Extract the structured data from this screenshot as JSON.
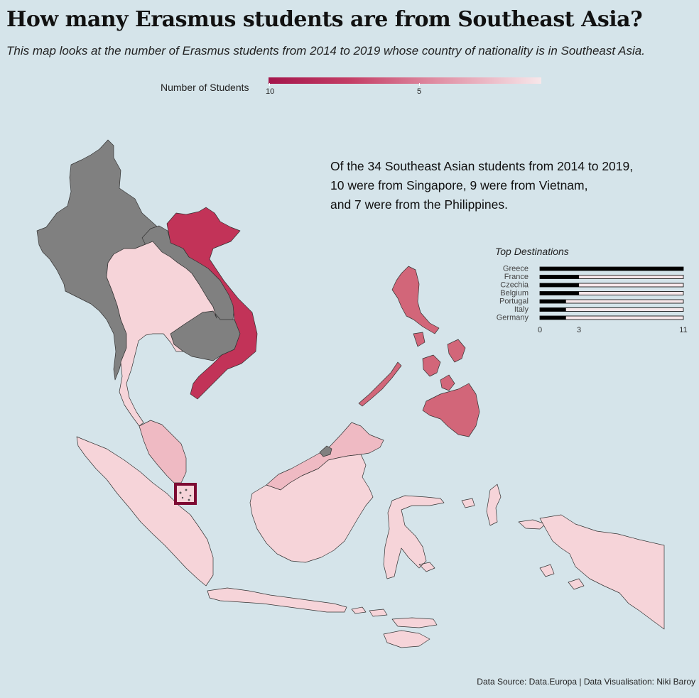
{
  "title": "How many Erasmus students are from Southeast Asia?",
  "subtitle": "This map looks at the number of Erasmus students from 2014 to 2019 whose country of nationality is in Southeast Asia.",
  "legend": {
    "label": "Number of Students",
    "ticks": [
      "10",
      "5"
    ],
    "color_high": "#a4154b",
    "color_low": "#f7e7ea",
    "no_data_color": "#808080"
  },
  "annotation": {
    "line1": "Of the 34 Southeast Asian students from 2014 to 2019,",
    "line2": "10 were from Singapore, 9 were from Vietnam,",
    "line3": "and 7 were from the Philippines."
  },
  "map_regions": [
    {
      "name": "Myanmar",
      "students": null
    },
    {
      "name": "Laos",
      "students": null
    },
    {
      "name": "Cambodia",
      "students": null
    },
    {
      "name": "Brunei",
      "students": null
    },
    {
      "name": "Vietnam",
      "students": 9
    },
    {
      "name": "Thailand",
      "students": 1
    },
    {
      "name": "Malaysia",
      "students": 3
    },
    {
      "name": "Singapore",
      "students": 10
    },
    {
      "name": "Indonesia",
      "students": 1
    },
    {
      "name": "Philippines",
      "students": 7
    }
  ],
  "chart_data": {
    "type": "bar",
    "title": "Top Destinations",
    "categories": [
      "Greece",
      "France",
      "Czechia",
      "Belgium",
      "Portugal",
      "Italy",
      "Germany"
    ],
    "values": [
      11,
      3,
      3,
      3,
      2,
      2,
      2
    ],
    "xlim": [
      0,
      11
    ],
    "xticks": [
      "0",
      "3",
      "11"
    ]
  },
  "source": "Data Source: Data.Europa | Data Visualisation: Niki Baroy"
}
